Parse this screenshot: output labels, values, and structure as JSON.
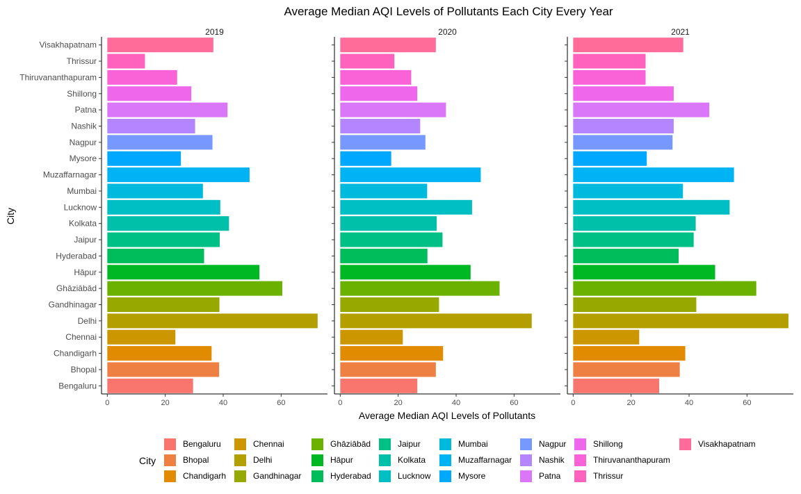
{
  "chart_data": {
    "type": "bar",
    "orientation": "horizontal",
    "title": "Average Median AQI Levels of Pollutants Each City Every Year",
    "xlabel": "Average Median AQI Levels of Pollutants",
    "ylabel": "City",
    "xlim": [
      -2,
      76
    ],
    "xticks": [
      0,
      20,
      40,
      60
    ],
    "grid": false,
    "legend": {
      "title": "City",
      "position": "bottom"
    },
    "categories": [
      "Bengaluru",
      "Bhopal",
      "Chandigarh",
      "Chennai",
      "Delhi",
      "Gandhinagar",
      "Ghāziābād",
      "Hāpur",
      "Hyderabad",
      "Jaipur",
      "Kolkata",
      "Lucknow",
      "Mumbai",
      "Muzaffarnagar",
      "Mysore",
      "Nagpur",
      "Nashik",
      "Patna",
      "Shillong",
      "Thiruvananthapuram",
      "Thrissur",
      "Visakhapatnam"
    ],
    "colors": [
      "#F8766D",
      "#EE8043",
      "#E08B00",
      "#CC9600",
      "#B3A000",
      "#96A900",
      "#6BB100",
      "#00B823",
      "#00BD5C",
      "#00C085",
      "#00C0A9",
      "#00BFC4",
      "#00BADE",
      "#00B3F4",
      "#00A9FF",
      "#7698FF",
      "#B385FF",
      "#DA76F8",
      "#EF67EB",
      "#FA62D8",
      "#FF62BC",
      "#FF6C9A"
    ],
    "panels": [
      {
        "label": "2019",
        "values": [
          29.6,
          38.6,
          36.0,
          23.5,
          72.6,
          38.7,
          60.4,
          52.5,
          33.4,
          38.8,
          42.0,
          39.0,
          33.0,
          49.1,
          25.4,
          36.3,
          30.3,
          41.5,
          29.0,
          24.1,
          13.0,
          36.6
        ]
      },
      {
        "label": "2020",
        "values": [
          26.6,
          33.0,
          35.5,
          21.6,
          66.1,
          34.1,
          55.0,
          45.0,
          30.1,
          35.3,
          33.3,
          45.5,
          30.0,
          48.5,
          17.6,
          29.4,
          27.6,
          36.5,
          26.6,
          24.5,
          18.7,
          33.0
        ]
      },
      {
        "label": "2021",
        "values": [
          29.7,
          36.8,
          38.7,
          22.8,
          74.3,
          42.5,
          63.2,
          49.0,
          36.4,
          41.6,
          42.3,
          54.0,
          37.9,
          55.5,
          25.4,
          34.3,
          34.7,
          47.0,
          34.7,
          25.0,
          25.0,
          38.0
        ]
      }
    ]
  }
}
